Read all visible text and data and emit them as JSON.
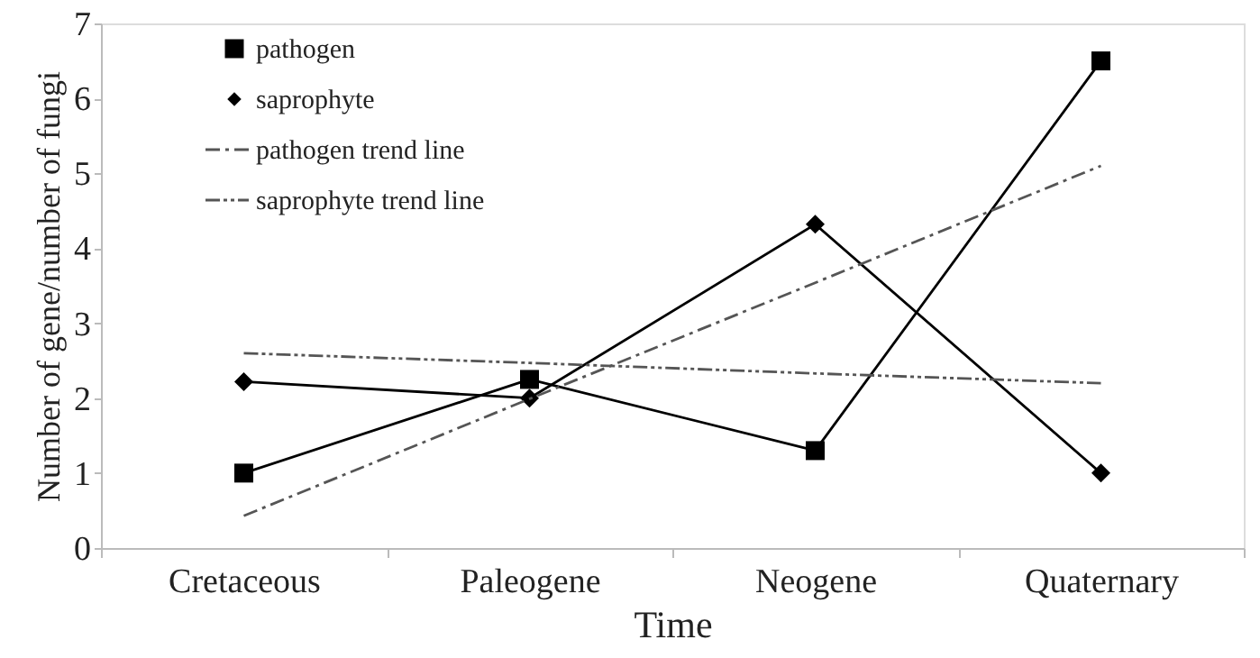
{
  "chart_data": {
    "type": "line",
    "xlabel": "Time",
    "ylabel": "Number of gene/number of fungi",
    "categories": [
      "Cretaceous",
      "Paleogene",
      "Neogene",
      "Quaternary"
    ],
    "series": [
      {
        "name": "pathogen",
        "color": "#000000",
        "values": [
          1.0,
          2.25,
          1.3,
          6.5
        ],
        "marker": "square",
        "line_style": "solid"
      },
      {
        "name": "saprophyte",
        "color": "#000000",
        "values": [
          2.22,
          2.0,
          4.32,
          1.0
        ],
        "marker": "diamond",
        "line_style": "solid"
      },
      {
        "name": "pathogen trend line",
        "color": "#555555",
        "values": [
          0.43,
          1.99,
          3.54,
          5.1
        ],
        "marker": "none",
        "line_style": "dashdot"
      },
      {
        "name": "saprophyte trend line",
        "color": "#555555",
        "values": [
          2.6,
          2.47,
          2.33,
          2.2
        ],
        "marker": "none",
        "line_style": "dashdotdot"
      }
    ],
    "ylim": [
      0,
      7
    ],
    "yticks": [
      0,
      1,
      2,
      3,
      4,
      5,
      6,
      7
    ],
    "grid": false,
    "legend": "top left"
  }
}
